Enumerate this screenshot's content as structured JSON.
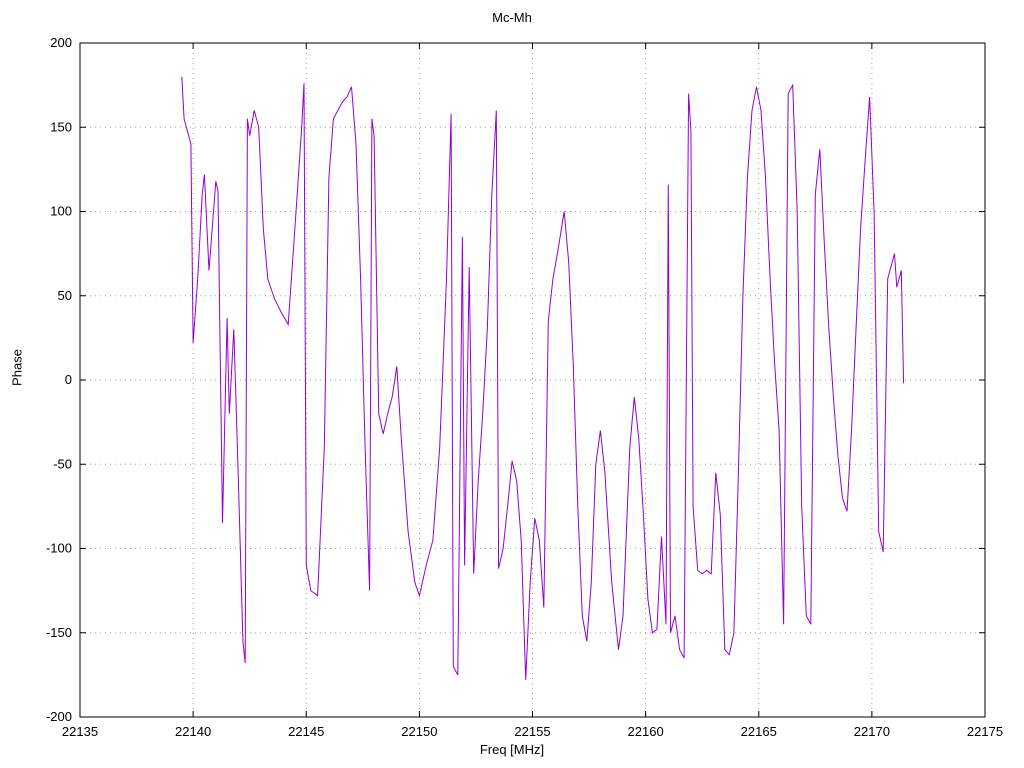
{
  "chart_data": {
    "type": "line",
    "title": "Mc-Mh",
    "xlabel": "Freq [MHz]",
    "ylabel": "Phase",
    "xlim": [
      22135,
      22175
    ],
    "ylim": [
      -200,
      200
    ],
    "x_ticks": [
      22135,
      22140,
      22145,
      22150,
      22155,
      22160,
      22165,
      22170,
      22175
    ],
    "y_ticks": [
      -200,
      -150,
      -100,
      -50,
      0,
      50,
      100,
      150,
      200
    ],
    "grid": true,
    "legend_position": "none",
    "line_color": "#9400d3",
    "grid_color": "#a0a0a0",
    "border_color": "#000000",
    "series": [
      {
        "name": "phase",
        "x": [
          22139.5,
          22139.6,
          22139.9,
          22140.0,
          22140.2,
          22140.4,
          22140.5,
          22140.7,
          22140.9,
          22141.0,
          22141.1,
          22141.3,
          22141.5,
          22141.6,
          22141.8,
          22142.0,
          22142.2,
          22142.3,
          22142.4,
          22142.5,
          22142.7,
          22142.9,
          22143.1,
          22143.3,
          22143.6,
          22143.9,
          22144.2,
          22144.5,
          22144.8,
          22144.9,
          22145.0,
          22145.2,
          22145.5,
          22145.8,
          22146.0,
          22146.2,
          22146.4,
          22146.6,
          22146.8,
          22147.0,
          22147.2,
          22147.4,
          22147.6,
          22147.8,
          22147.9,
          22148.0,
          22148.2,
          22148.4,
          22148.6,
          22148.8,
          22149.0,
          22149.2,
          22149.5,
          22149.8,
          22150.0,
          22150.3,
          22150.6,
          22150.9,
          22151.2,
          22151.4,
          22151.5,
          22151.7,
          22151.9,
          22152.0,
          22152.2,
          22152.4,
          22152.6,
          22152.8,
          22153.0,
          22153.2,
          22153.4,
          22153.5,
          22153.7,
          22153.9,
          22154.1,
          22154.3,
          22154.5,
          22154.7,
          22154.9,
          22155.1,
          22155.3,
          22155.5,
          22155.7,
          22155.9,
          22156.1,
          22156.4,
          22156.6,
          22156.8,
          22157.0,
          22157.2,
          22157.4,
          22157.6,
          22157.8,
          22158.0,
          22158.2,
          22158.5,
          22158.8,
          22159.0,
          22159.3,
          22159.5,
          22159.7,
          22159.9,
          22160.1,
          22160.3,
          22160.5,
          22160.7,
          22160.9,
          22161.0,
          22161.1,
          22161.3,
          22161.5,
          22161.7,
          22161.9,
          22162.0,
          22162.1,
          22162.3,
          22162.5,
          22162.7,
          22162.9,
          22163.1,
          22163.3,
          22163.5,
          22163.7,
          22163.9,
          22164.1,
          22164.3,
          22164.5,
          22164.7,
          22164.9,
          22165.1,
          22165.3,
          22165.5,
          22165.7,
          22165.9,
          22166.1,
          22166.3,
          22166.5,
          22166.7,
          22166.9,
          22167.1,
          22167.3,
          22167.5,
          22167.7,
          22167.9,
          22168.1,
          22168.3,
          22168.5,
          22168.7,
          22168.9,
          22169.1,
          22169.3,
          22169.5,
          22169.7,
          22169.9,
          22170.1,
          22170.3,
          22170.5,
          22170.7,
          22170.9,
          22171.0,
          22171.1,
          22171.3,
          22171.4
        ],
        "y": [
          180,
          155,
          140,
          22,
          60,
          110,
          122,
          65,
          100,
          118,
          112,
          -85,
          37,
          -20,
          30,
          -60,
          -155,
          -168,
          155,
          145,
          160,
          150,
          90,
          60,
          48,
          40,
          33,
          90,
          150,
          176,
          -110,
          -125,
          -128,
          -40,
          120,
          155,
          160,
          165,
          168,
          174,
          140,
          60,
          -40,
          -125,
          155,
          145,
          -20,
          -32,
          -20,
          -10,
          8,
          -35,
          -90,
          -120,
          -128,
          -110,
          -95,
          -40,
          60,
          158,
          -170,
          -175,
          85,
          -110,
          67,
          -115,
          -60,
          -20,
          30,
          110,
          160,
          -112,
          -100,
          -75,
          -48,
          -60,
          -95,
          -178,
          -120,
          -82,
          -95,
          -135,
          35,
          60,
          75,
          100,
          70,
          10,
          -75,
          -140,
          -155,
          -120,
          -50,
          -30,
          -55,
          -120,
          -160,
          -140,
          -40,
          -10,
          -35,
          -80,
          -130,
          -150,
          -148,
          -93,
          -145,
          116,
          -150,
          -140,
          -160,
          -165,
          170,
          148,
          -75,
          -113,
          -115,
          -113,
          -115,
          -55,
          -80,
          -160,
          -163,
          -150,
          -55,
          50,
          120,
          160,
          174,
          160,
          120,
          60,
          10,
          -30,
          -145,
          170,
          175,
          100,
          -75,
          -140,
          -145,
          110,
          137,
          80,
          30,
          -10,
          -45,
          -70,
          -78,
          -30,
          30,
          90,
          130,
          168,
          100,
          -90,
          -102,
          60,
          70,
          75,
          55,
          65,
          -2
        ]
      }
    ]
  }
}
